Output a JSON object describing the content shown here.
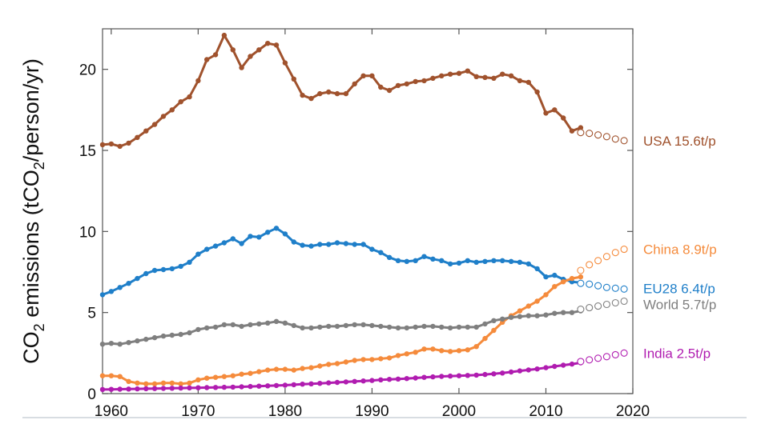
{
  "chart_data": {
    "type": "line",
    "title": "",
    "xlabel": "",
    "ylabel_parts": [
      "CO",
      "2",
      " emissions (tCO",
      "2",
      "/person/yr)"
    ],
    "xlim": [
      1959,
      2020
    ],
    "ylim": [
      0,
      22.5
    ],
    "x_ticks": [
      1960,
      1970,
      1980,
      1990,
      2000,
      2010,
      2020
    ],
    "y_ticks": [
      0,
      5,
      10,
      15,
      20
    ],
    "x_tick_labels": [
      "1960",
      "1970",
      "1980",
      "1990",
      "2000",
      "2010",
      "2020"
    ],
    "y_tick_labels": [
      "0",
      "5",
      "10",
      "15",
      "20"
    ],
    "grid": false,
    "observed_end_year": 2013,
    "projection_years": [
      2014,
      2015,
      2016,
      2017,
      2018,
      2019
    ],
    "series": [
      {
        "label": "USA 15.6t/p",
        "color": "#a0522d",
        "x_start": 1959,
        "values": [
          15.35,
          15.4,
          15.25,
          15.45,
          15.8,
          16.2,
          16.6,
          17.1,
          17.5,
          18.0,
          18.3,
          19.3,
          20.6,
          20.9,
          22.1,
          21.2,
          20.1,
          20.8,
          21.2,
          21.6,
          21.5,
          20.4,
          19.4,
          18.4,
          18.2,
          18.5,
          18.6,
          18.5,
          18.5,
          19.1,
          19.6,
          19.6,
          18.9,
          18.7,
          19.0,
          19.1,
          19.25,
          19.3,
          19.45,
          19.6,
          19.7,
          19.75,
          19.9,
          19.55,
          19.5,
          19.45,
          19.7,
          19.6,
          19.3,
          19.2,
          18.6,
          17.3,
          17.5,
          17.0,
          16.2,
          16.4
        ],
        "projection": [
          16.1,
          16.05,
          15.95,
          15.85,
          15.7,
          15.6
        ]
      },
      {
        "label": "EU28 6.4t/p",
        "color": "#1f7fc9",
        "x_start": 1959,
        "values": [
          6.1,
          6.3,
          6.55,
          6.8,
          7.1,
          7.4,
          7.6,
          7.65,
          7.7,
          7.85,
          8.1,
          8.6,
          8.9,
          9.1,
          9.3,
          9.55,
          9.25,
          9.7,
          9.65,
          9.95,
          10.2,
          9.85,
          9.35,
          9.15,
          9.1,
          9.2,
          9.2,
          9.3,
          9.25,
          9.2,
          9.2,
          8.9,
          8.7,
          8.4,
          8.2,
          8.15,
          8.2,
          8.45,
          8.3,
          8.2,
          8.0,
          8.05,
          8.2,
          8.1,
          8.15,
          8.2,
          8.2,
          8.15,
          8.1,
          8.0,
          7.7,
          7.2,
          7.3,
          7.05,
          6.9,
          6.85
        ],
        "projection": [
          6.8,
          6.75,
          6.65,
          6.55,
          6.5,
          6.45
        ]
      },
      {
        "label": "China 8.9t/p",
        "color": "#f58b3c",
        "x_start": 1959,
        "values": [
          1.1,
          1.1,
          1.05,
          0.75,
          0.65,
          0.6,
          0.6,
          0.65,
          0.65,
          0.6,
          0.65,
          0.85,
          0.95,
          1.0,
          1.05,
          1.1,
          1.2,
          1.25,
          1.35,
          1.45,
          1.5,
          1.5,
          1.45,
          1.55,
          1.6,
          1.7,
          1.8,
          1.85,
          1.95,
          2.05,
          2.1,
          2.1,
          2.15,
          2.2,
          2.35,
          2.45,
          2.55,
          2.75,
          2.75,
          2.65,
          2.6,
          2.65,
          2.7,
          2.9,
          3.4,
          3.9,
          4.4,
          4.8,
          5.1,
          5.4,
          5.7,
          6.1,
          6.6,
          6.9,
          7.1,
          7.2
        ],
        "projection": [
          7.6,
          7.95,
          8.2,
          8.45,
          8.7,
          8.9
        ]
      },
      {
        "label": "World 5.7t/p",
        "color": "#7f7f7f",
        "x_start": 1959,
        "values": [
          3.05,
          3.1,
          3.05,
          3.15,
          3.25,
          3.35,
          3.45,
          3.55,
          3.6,
          3.65,
          3.75,
          3.95,
          4.05,
          4.1,
          4.25,
          4.25,
          4.15,
          4.25,
          4.3,
          4.35,
          4.45,
          4.35,
          4.2,
          4.05,
          4.05,
          4.1,
          4.15,
          4.15,
          4.2,
          4.25,
          4.25,
          4.2,
          4.15,
          4.1,
          4.05,
          4.05,
          4.1,
          4.15,
          4.15,
          4.1,
          4.05,
          4.1,
          4.1,
          4.1,
          4.3,
          4.5,
          4.6,
          4.7,
          4.75,
          4.8,
          4.8,
          4.85,
          4.95,
          5.0,
          5.0,
          5.1
        ],
        "projection": [
          5.2,
          5.3,
          5.4,
          5.5,
          5.6,
          5.7
        ]
      },
      {
        "label": "India 2.5t/p",
        "color": "#b01cb0",
        "x_start": 1959,
        "values": [
          0.25,
          0.26,
          0.27,
          0.28,
          0.29,
          0.3,
          0.31,
          0.32,
          0.33,
          0.34,
          0.35,
          0.36,
          0.37,
          0.38,
          0.39,
          0.4,
          0.42,
          0.44,
          0.46,
          0.48,
          0.5,
          0.52,
          0.55,
          0.58,
          0.6,
          0.63,
          0.66,
          0.69,
          0.72,
          0.75,
          0.78,
          0.81,
          0.85,
          0.88,
          0.9,
          0.93,
          0.96,
          1.0,
          1.03,
          1.06,
          1.08,
          1.1,
          1.12,
          1.14,
          1.18,
          1.22,
          1.27,
          1.33,
          1.4,
          1.46,
          1.52,
          1.6,
          1.68,
          1.75,
          1.82,
          1.9
        ],
        "projection": [
          1.98,
          2.08,
          2.18,
          2.28,
          2.4,
          2.5
        ]
      }
    ],
    "label_values": {
      "USA 15.6t/p": 15.6,
      "China 8.9t/p": 8.9,
      "EU28 6.4t/p": 6.5,
      "World 5.7t/p": 5.5,
      "India 2.5t/p": 2.5
    }
  }
}
